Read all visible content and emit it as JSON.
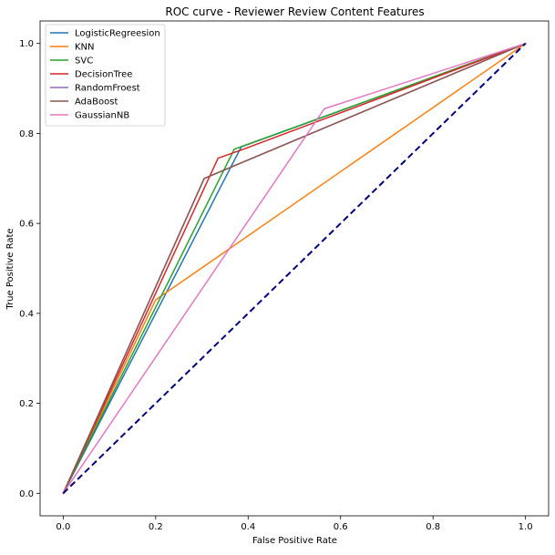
{
  "chart_data": {
    "type": "line",
    "title": "ROC curve - Reviewer Review Content Features",
    "xlabel": "False Positive Rate",
    "ylabel": "True Positive Rate",
    "xlim": [
      -0.05,
      1.05
    ],
    "ylim": [
      -0.05,
      1.05
    ],
    "xticks": [
      0.0,
      0.2,
      0.4,
      0.6,
      0.8,
      1.0
    ],
    "yticks": [
      0.0,
      0.2,
      0.4,
      0.6,
      0.8,
      1.0
    ],
    "xtick_labels": [
      "0.0",
      "0.2",
      "0.4",
      "0.6",
      "0.8",
      "1.0"
    ],
    "ytick_labels": [
      "0.0",
      "0.2",
      "0.4",
      "0.6",
      "0.8",
      "1.0"
    ],
    "grid": false,
    "legend_position": "top-left",
    "series": [
      {
        "name": "LogisticRegreesion",
        "color": "#1f77b4",
        "x": [
          0.0,
          0.385,
          1.0
        ],
        "y": [
          0.0,
          0.77,
          1.0
        ]
      },
      {
        "name": "KNN",
        "color": "#ff7f0e",
        "x": [
          0.0,
          0.2,
          1.0
        ],
        "y": [
          0.0,
          0.43,
          1.0
        ]
      },
      {
        "name": "SVC",
        "color": "#2ca02c",
        "x": [
          0.0,
          0.37,
          1.0
        ],
        "y": [
          0.0,
          0.765,
          1.0
        ]
      },
      {
        "name": "DecisionTree",
        "color": "#d62728",
        "x": [
          0.0,
          0.335,
          0.39,
          1.0
        ],
        "y": [
          0.0,
          0.745,
          0.765,
          1.0
        ]
      },
      {
        "name": "RandomFroest",
        "color": "#9467bd",
        "x": [
          0.0,
          0.305,
          1.0
        ],
        "y": [
          0.0,
          0.7,
          1.0
        ]
      },
      {
        "name": "AdaBoost",
        "color": "#8c564b",
        "x": [
          0.0,
          0.305,
          1.0
        ],
        "y": [
          0.0,
          0.7,
          1.0
        ]
      },
      {
        "name": "GaussianNB",
        "color": "#e377c2",
        "x": [
          0.0,
          0.565,
          1.0
        ],
        "y": [
          0.0,
          0.855,
          1.0
        ]
      }
    ],
    "reference_line": {
      "x": [
        0.0,
        1.0
      ],
      "y": [
        0.0,
        1.0
      ],
      "color": "#000080",
      "style": "dashed"
    }
  }
}
